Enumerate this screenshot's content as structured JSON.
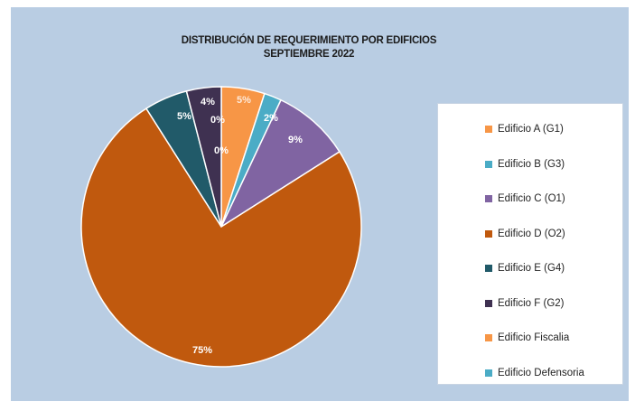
{
  "chart_data": {
    "type": "pie",
    "title": "DISTRIBUCIÓN DE REQUERIMIENTO POR EDIFICIOS",
    "subtitle": "SEPTIEMBRE 2022",
    "legend_position": "right",
    "slices": [
      {
        "label": "Edificio A (G1)",
        "value": 5,
        "display": "5%",
        "color": "#f79646"
      },
      {
        "label": "Edificio B (G3)",
        "value": 2,
        "display": "2%",
        "color": "#4bacc6"
      },
      {
        "label": "Edificio C (O1)",
        "value": 9,
        "display": "9%",
        "color": "#8064a2"
      },
      {
        "label": "Edificio D (O2)",
        "value": 75,
        "display": "75%",
        "color": "#c0590e"
      },
      {
        "label": "Edificio E (G4)",
        "value": 5,
        "display": "5%",
        "color": "#215a69"
      },
      {
        "label": "Edificio F (G2)",
        "value": 4,
        "display": "4%",
        "color": "#3f3151"
      },
      {
        "label": "Edificio Fiscalia",
        "value": 0,
        "display": "0%",
        "color": "#f79646"
      },
      {
        "label": "Edificio Defensoria",
        "value": 0,
        "display": "0%",
        "color": "#4bacc6"
      }
    ]
  }
}
